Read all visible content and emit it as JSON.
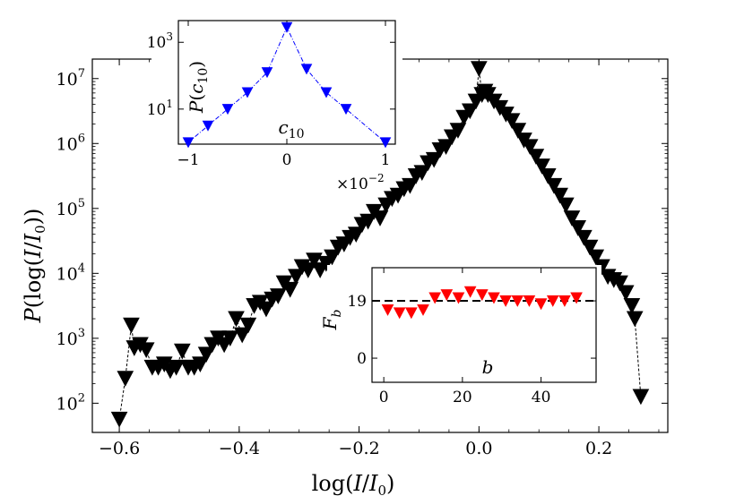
{
  "chart_data": [
    {
      "id": "main",
      "type": "scatter",
      "title": "",
      "xlabel": "log(I/I₀)",
      "ylabel": "P(log(I/I₀))",
      "ylabel_parts": {
        "func": "P",
        "open": "(log(",
        "var": "I",
        "slash": "/",
        "sub_var": "I",
        "sub": "0",
        "close": "))"
      },
      "xlabel_parts": {
        "func": "log(",
        "var": "I",
        "slash": "/",
        "sub_var": "I",
        "sub": "0",
        "close": ")"
      },
      "xlim": [
        -0.645,
        0.315
      ],
      "ylim_log10": [
        1.55,
        7.3
      ],
      "yscale": "log",
      "grid": false,
      "marker": "down-triangle",
      "color": "#000000",
      "line_style": "dashed",
      "xticks": [
        -0.6,
        -0.4,
        -0.2,
        0.0,
        0.2
      ],
      "xtick_labels": [
        "−0.6",
        "−0.4",
        "−0.2",
        "0.0",
        "0.2"
      ],
      "yticks_exp": [
        2,
        3,
        4,
        5,
        6,
        7
      ],
      "ytick_base": "10",
      "series": [
        {
          "name": "P",
          "points": [
            [
              -0.6,
              1.75
            ],
            [
              -0.59,
              2.38
            ],
            [
              -0.58,
              3.2
            ],
            [
              -0.575,
              2.85
            ],
            [
              -0.565,
              2.9
            ],
            [
              -0.555,
              2.82
            ],
            [
              -0.545,
              2.55
            ],
            [
              -0.535,
              2.55
            ],
            [
              -0.525,
              2.6
            ],
            [
              -0.515,
              2.5
            ],
            [
              -0.505,
              2.55
            ],
            [
              -0.495,
              2.8
            ],
            [
              -0.485,
              2.55
            ],
            [
              -0.475,
              2.55
            ],
            [
              -0.465,
              2.6
            ],
            [
              -0.455,
              2.75
            ],
            [
              -0.445,
              2.9
            ],
            [
              -0.435,
              3.0
            ],
            [
              -0.425,
              2.9
            ],
            [
              -0.415,
              3.0
            ],
            [
              -0.405,
              3.3
            ],
            [
              -0.395,
              3.05
            ],
            [
              -0.385,
              3.2
            ],
            [
              -0.375,
              3.5
            ],
            [
              -0.365,
              3.55
            ],
            [
              -0.355,
              3.45
            ],
            [
              -0.345,
              3.6
            ],
            [
              -0.335,
              3.65
            ],
            [
              -0.325,
              3.85
            ],
            [
              -0.315,
              3.75
            ],
            [
              -0.305,
              3.95
            ],
            [
              -0.295,
              4.1
            ],
            [
              -0.285,
              4.05
            ],
            [
              -0.275,
              4.2
            ],
            [
              -0.265,
              4.05
            ],
            [
              -0.255,
              4.15
            ],
            [
              -0.245,
              4.25
            ],
            [
              -0.235,
              4.4
            ],
            [
              -0.225,
              4.45
            ],
            [
              -0.215,
              4.55
            ],
            [
              -0.205,
              4.6
            ],
            [
              -0.195,
              4.75
            ],
            [
              -0.185,
              4.8
            ],
            [
              -0.175,
              4.95
            ],
            [
              -0.165,
              4.85
            ],
            [
              -0.155,
              5.05
            ],
            [
              -0.145,
              5.15
            ],
            [
              -0.135,
              5.2
            ],
            [
              -0.125,
              5.3
            ],
            [
              -0.115,
              5.35
            ],
            [
              -0.105,
              5.5
            ],
            [
              -0.095,
              5.55
            ],
            [
              -0.085,
              5.7
            ],
            [
              -0.075,
              5.75
            ],
            [
              -0.065,
              5.9
            ],
            [
              -0.055,
              5.95
            ],
            [
              -0.045,
              6.1
            ],
            [
              -0.035,
              6.2
            ],
            [
              -0.025,
              6.4
            ],
            [
              -0.015,
              6.5
            ],
            [
              -0.005,
              6.65
            ],
            [
              0.0,
              7.15
            ],
            [
              0.005,
              6.75
            ],
            [
              0.01,
              6.8
            ],
            [
              0.015,
              6.75
            ],
            [
              0.025,
              6.65
            ],
            [
              0.035,
              6.55
            ],
            [
              0.045,
              6.45
            ],
            [
              0.055,
              6.35
            ],
            [
              0.065,
              6.2
            ],
            [
              0.075,
              6.05
            ],
            [
              0.085,
              5.95
            ],
            [
              0.095,
              5.8
            ],
            [
              0.105,
              5.65
            ],
            [
              0.115,
              5.5
            ],
            [
              0.125,
              5.35
            ],
            [
              0.135,
              5.2
            ],
            [
              0.145,
              5.05
            ],
            [
              0.155,
              4.85
            ],
            [
              0.165,
              4.7
            ],
            [
              0.175,
              4.55
            ],
            [
              0.185,
              4.4
            ],
            [
              0.195,
              4.25
            ],
            [
              0.205,
              4.1
            ],
            [
              0.215,
              3.95
            ],
            [
              0.225,
              3.9
            ],
            [
              0.235,
              3.85
            ],
            [
              0.245,
              3.7
            ],
            [
              0.255,
              3.5
            ],
            [
              0.26,
              3.3
            ],
            [
              0.27,
              2.1
            ]
          ]
        }
      ]
    },
    {
      "id": "inset_c10",
      "type": "line",
      "xlabel": "c",
      "xlabel_sub": "10",
      "ylabel_parts": {
        "func": "P(",
        "var": "c",
        "sub": "10",
        "close": ")"
      },
      "yscale": "log",
      "color": "#0000ff",
      "marker": "down-triangle",
      "line_style": "dash-dot",
      "xlim": [
        -1.1,
        1.1
      ],
      "ylim_log10": [
        -0.05,
        3.65
      ],
      "xticks": [
        -1,
        0,
        1
      ],
      "xtick_labels": [
        "−1",
        "0",
        "1"
      ],
      "x_multiplier": "×10",
      "x_multiplier_exp": "−2",
      "yticks_exp": [
        1,
        3
      ],
      "ytick_base": "10",
      "x": [
        -1.0,
        -0.8,
        -0.6,
        -0.4,
        -0.2,
        0.0,
        0.2,
        0.4,
        0.6,
        1.0
      ],
      "y_log10": [
        0.0,
        0.5,
        1.0,
        1.5,
        2.1,
        3.45,
        2.2,
        1.5,
        1.0,
        0.0
      ]
    },
    {
      "id": "inset_Fb",
      "type": "scatter",
      "xlabel": "b",
      "ylabel": "F",
      "ylabel_sub": "b",
      "color": "#ff0000",
      "marker": "down-triangle",
      "reference_line": 19,
      "reference_style": "dashed",
      "xlim": [
        -3,
        54
      ],
      "ylim": [
        -8,
        30
      ],
      "xticks": [
        0,
        20,
        40
      ],
      "xtick_labels": [
        "0",
        "20",
        "40"
      ],
      "yticks": [
        0,
        19
      ],
      "ytick_labels": [
        "0",
        "19"
      ],
      "x": [
        1,
        4,
        7,
        10,
        13,
        16,
        19,
        22,
        25,
        28,
        31,
        34,
        37,
        40,
        43,
        46,
        49
      ],
      "y": [
        16,
        15,
        15,
        16,
        20,
        21,
        20,
        22,
        21,
        20,
        19,
        19,
        19,
        18,
        19,
        19,
        20
      ]
    }
  ]
}
